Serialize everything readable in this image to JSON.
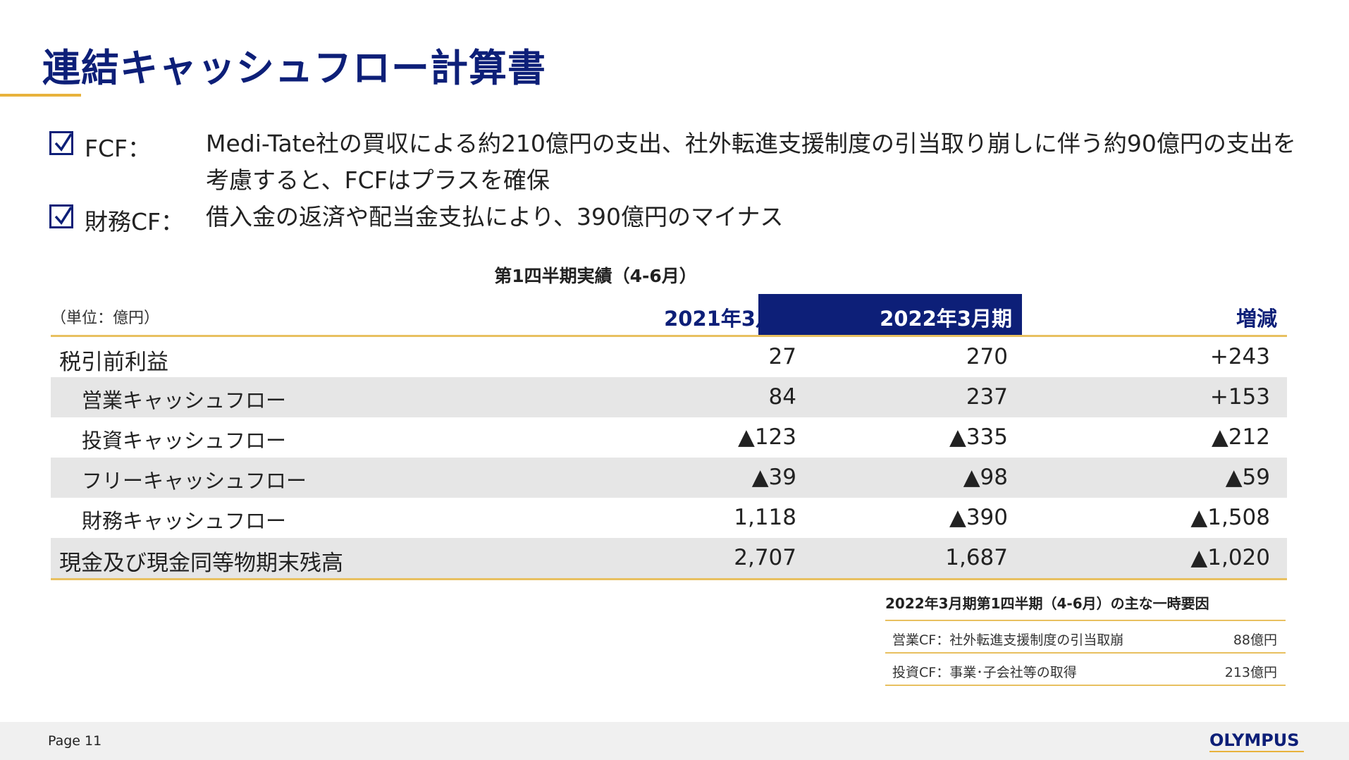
{
  "slide": {
    "title": "連結キャッシュフロー計算書",
    "page_label": "Page 11",
    "logo": "OLYMPUS"
  },
  "bullets": [
    {
      "label": "FCF：",
      "text": "Medi-Tate社の買収による約210億円の支出、社外転進支援制度の引当取り崩しに伴う約90億円の支出を考慮すると、FCFはプラスを確保"
    },
    {
      "label": "財務CF：",
      "text": "借入金の返済や配当金支払により、390億円のマイナス"
    }
  ],
  "table": {
    "caption": "第1四半期実績（4-6月）",
    "unit": "（単位：億円）",
    "columns": [
      "2021年3月期",
      "2022年3月期",
      "増減"
    ],
    "rows": [
      {
        "label": "税引前利益",
        "v1": "27",
        "v2": "270",
        "v3": "+243"
      },
      {
        "label": "営業キャッシュフロー",
        "v1": "84",
        "v2": "237",
        "v3": "+153"
      },
      {
        "label": "投資キャッシュフロー",
        "v1": "▲123",
        "v2": "▲335",
        "v3": "▲212"
      },
      {
        "label": "フリーキャッシュフロー",
        "v1": "▲39",
        "v2": "▲98",
        "v3": "▲59"
      },
      {
        "label": "財務キャッシュフロー",
        "v1": "1,118",
        "v2": "▲390",
        "v3": "▲1,508"
      },
      {
        "label": "現金及び現金同等物期末残高",
        "v1": "2,707",
        "v2": "1,687",
        "v3": "▲1,020"
      }
    ]
  },
  "note": {
    "title": "2022年3月期第1四半期（4-6月）の主な一時要因",
    "items": [
      {
        "label": "営業CF：社外転進支援制度の引当取崩",
        "value": "88億円"
      },
      {
        "label": "投資CF：事業･子会社等の取得",
        "value": "213億円"
      }
    ]
  },
  "colors": {
    "navy": "#0d1f78",
    "gold": "#e8b23c",
    "row_shade": "#e6e6e6"
  }
}
